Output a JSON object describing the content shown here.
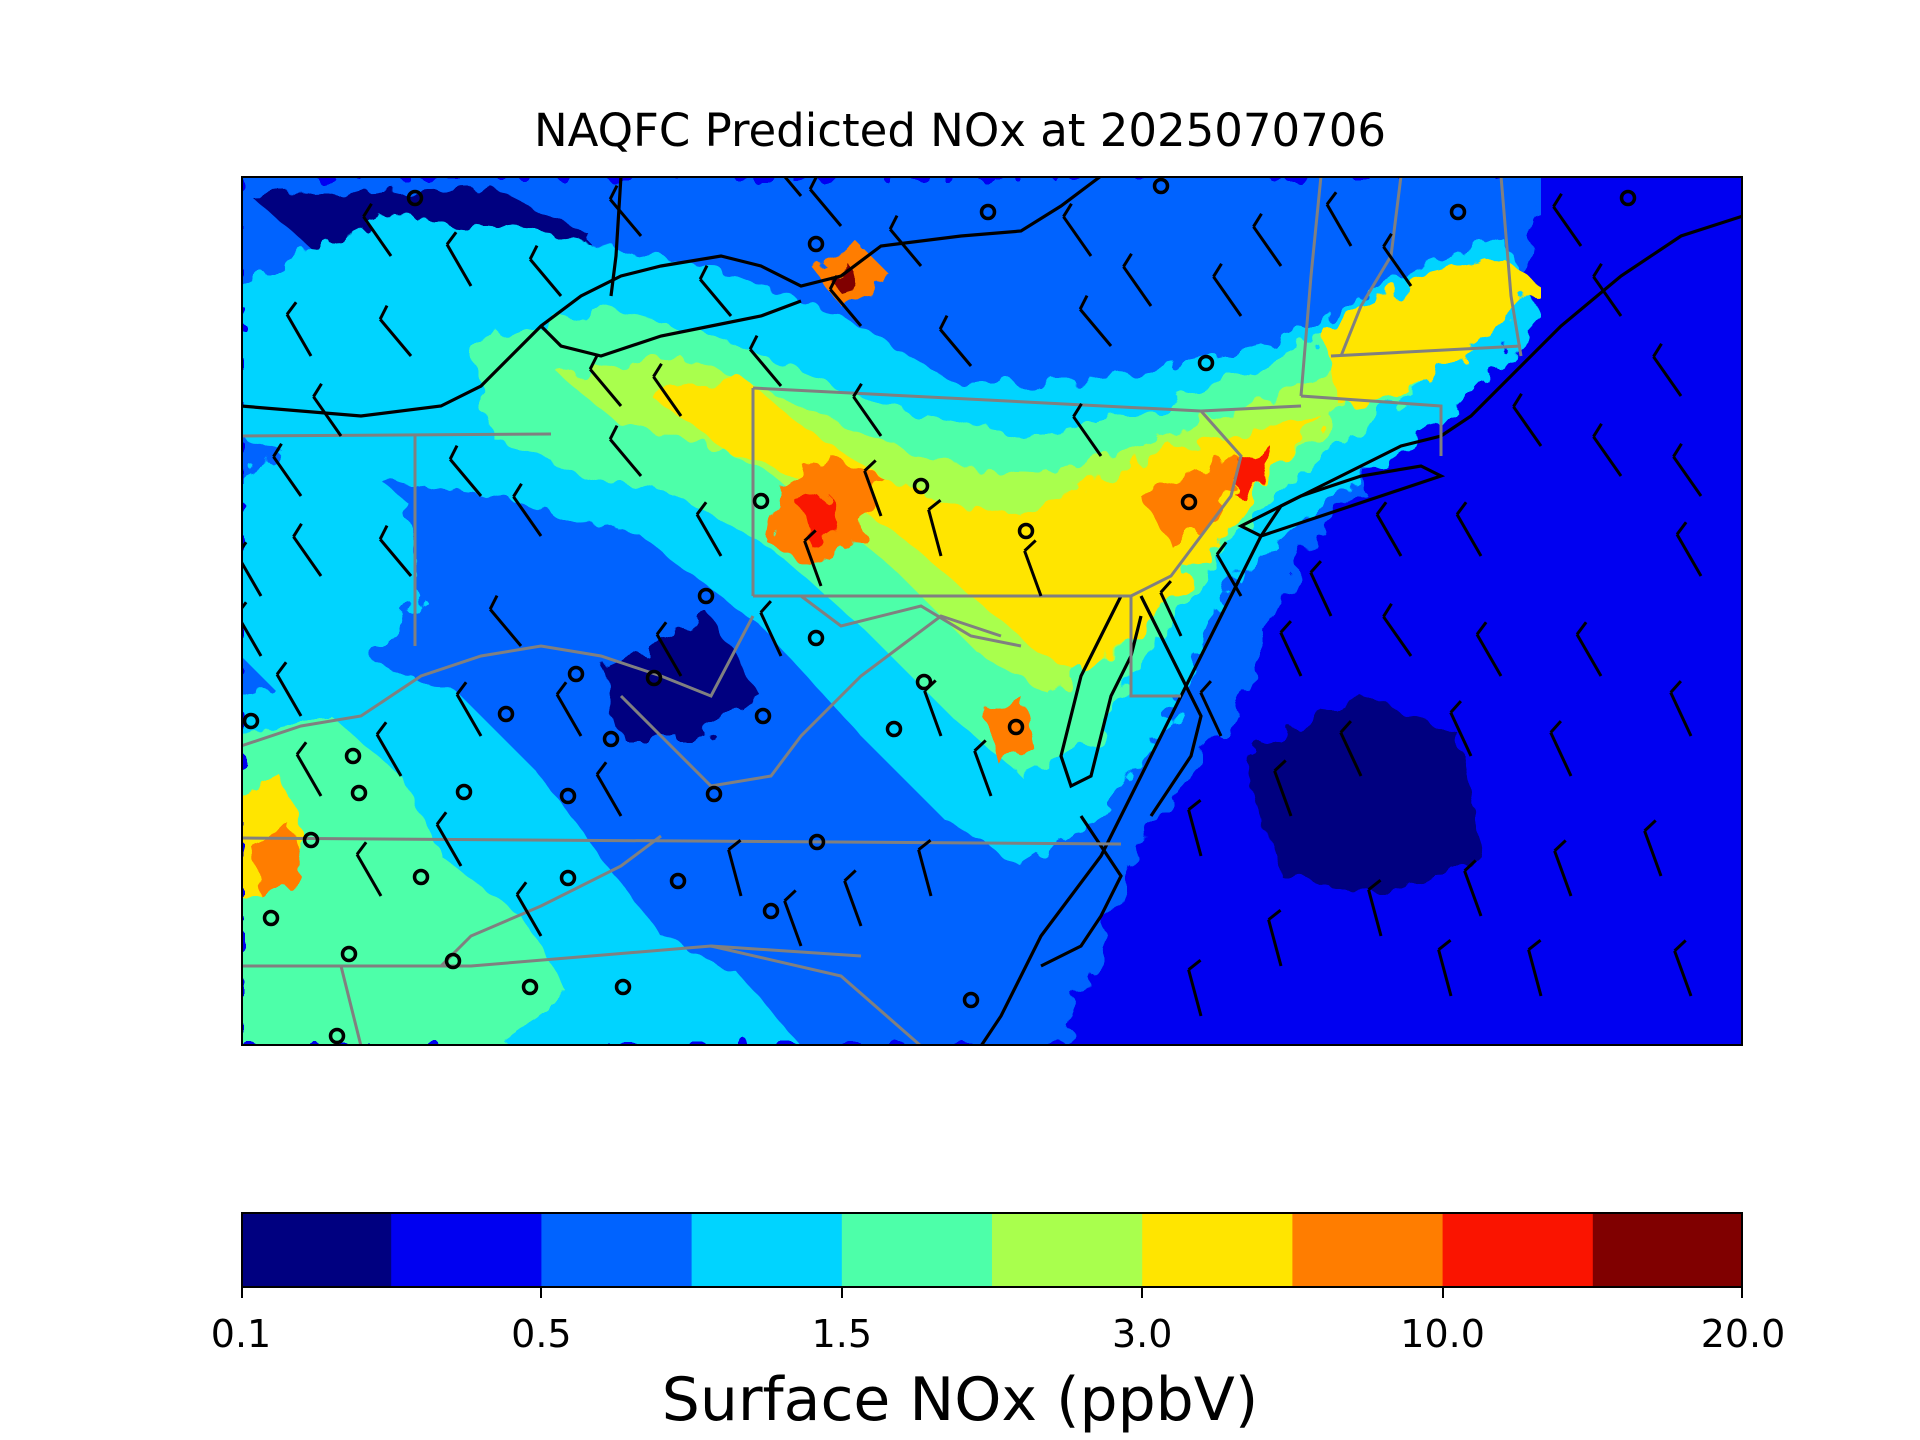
{
  "title": "NAQFC Predicted NOx at 2025070706",
  "colorbar": {
    "label": "Surface NOx (ppbV)",
    "ticks": [
      "0.1",
      "0.5",
      "1.5",
      "3.0",
      "10.0",
      "20.0"
    ],
    "colors": [
      "#000080",
      "#0000f1",
      "#0063ff",
      "#00d4ff",
      "#4dffa9",
      "#a9ff4d",
      "#ffe500",
      "#ff7d00",
      "#fa1400",
      "#800000"
    ]
  },
  "map": {
    "field": "Surface NOx",
    "background_color": "#0000f1",
    "features": [
      "state-boundaries",
      "coastlines",
      "wind-barbs",
      "monitor-sites"
    ]
  }
}
